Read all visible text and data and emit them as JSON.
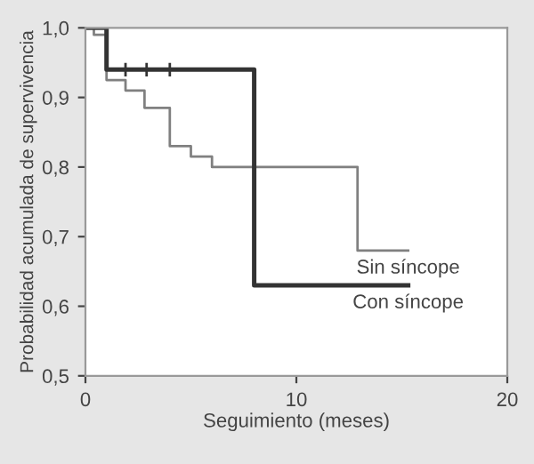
{
  "chart_data": {
    "type": "step",
    "xlabel": "Seguimiento (meses)",
    "ylabel": "Probabilidad acumulada de supervivencia",
    "xlim": [
      0,
      20
    ],
    "ylim": [
      0.5,
      1.0
    ],
    "xticks": [
      0,
      10,
      20
    ],
    "yticks": [
      {
        "value": 0.5,
        "label": "0,5"
      },
      {
        "value": 0.6,
        "label": "0,6"
      },
      {
        "value": 0.7,
        "label": "0,7"
      },
      {
        "value": 0.8,
        "label": "0,8"
      },
      {
        "value": 0.9,
        "label": "0,9"
      },
      {
        "value": 1.0,
        "label": "1,0"
      }
    ],
    "grid": false,
    "legend": false,
    "series": [
      {
        "name": "Sin síncope",
        "color": "#808080",
        "x": [
          0,
          0.4,
          1,
          1.9,
          2.8,
          4,
          5,
          6,
          12.9,
          15.3
        ],
        "values": [
          1.0,
          0.99,
          0.925,
          0.91,
          0.885,
          0.83,
          0.815,
          0.8,
          0.68,
          0.68
        ]
      },
      {
        "name": "Con síncope",
        "color": "#333333",
        "x": [
          0,
          1,
          8,
          15.3
        ],
        "values": [
          1.0,
          0.94,
          0.63,
          0.63
        ]
      },
      {
        "type": "scatter",
        "marker": "cross",
        "color": "#333333",
        "x": [
          1.9,
          2.9,
          4.0
        ],
        "values": [
          0.94,
          0.94,
          0.94
        ]
      }
    ]
  }
}
